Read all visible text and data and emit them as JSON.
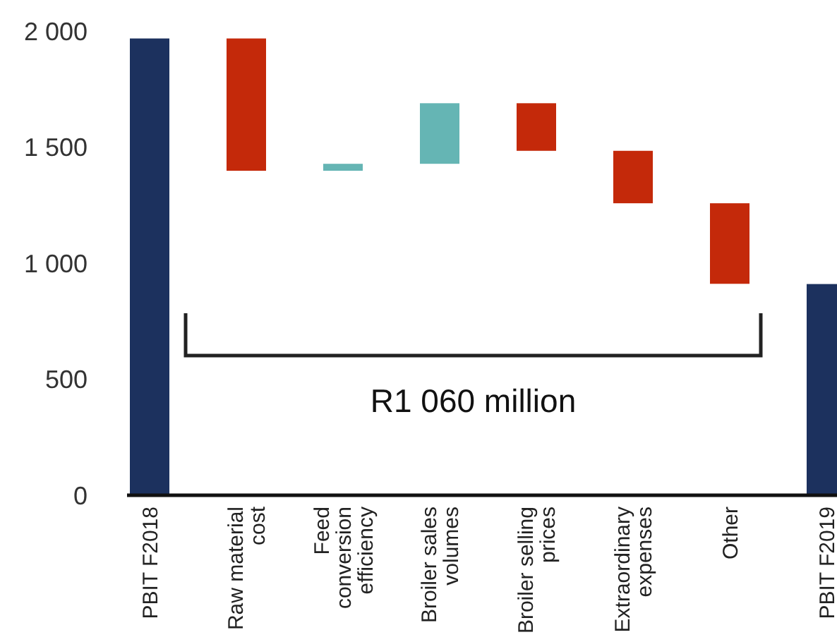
{
  "chart_data": {
    "type": "bar",
    "categories": [
      "PBIT F2018",
      "Raw material\ncost",
      "Feed\nconversion\nefficiency",
      "Broiler sales\nvolumes",
      "Broiler selling\nprices",
      "Extraordinary\nexpenses",
      "Other",
      "PBIT F2019"
    ],
    "values": [
      1968,
      -570,
      30,
      261,
      -205,
      -226,
      -347,
      910
    ],
    "base": [
      0,
      1968,
      1398,
      1428,
      1689,
      1484,
      1258,
      0
    ],
    "colors": [
      "#1c315e",
      "#c4290a",
      "#65b5b4",
      "#65b5b4",
      "#c4290a",
      "#c4290a",
      "#c4290a",
      "#1c315e"
    ],
    "ylim": [
      0,
      2000
    ],
    "yticks": [
      {
        "value": 0,
        "label": "0"
      },
      {
        "value": 500,
        "label": "500"
      },
      {
        "value": 1000,
        "label": "1 000"
      },
      {
        "value": 1500,
        "label": "1 500"
      },
      {
        "value": 2000,
        "label": "2 000"
      }
    ],
    "annotations": [
      "R1 060 million"
    ]
  }
}
